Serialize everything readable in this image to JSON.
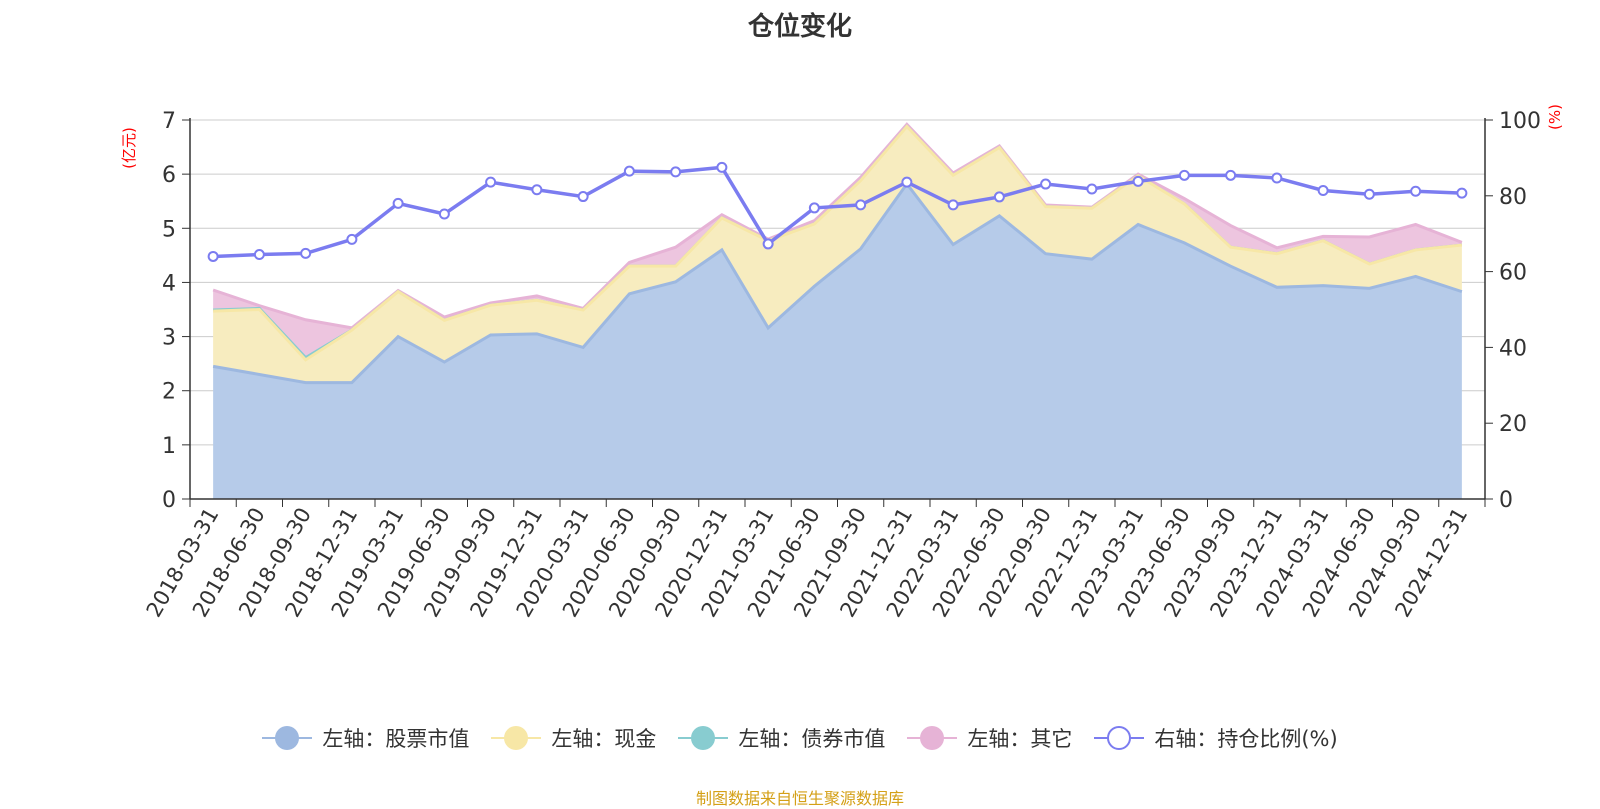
{
  "title": "仓位变化",
  "source_note": "制图数据来自恒生聚源数据库",
  "colors": {
    "stock": "#9db8e0",
    "stock_fill": "#b6cbe9",
    "cash": "#f7e7a6",
    "cash_fill": "#f7ecbf",
    "bond": "#88ccd0",
    "other": "#e6b3d6",
    "other_fill": "#edc5df",
    "ratio": "#7b7cf0",
    "axis_label": "#ff0000",
    "grid": "#cccccc",
    "text": "#333333",
    "source": "#d4a017"
  },
  "legend": [
    {
      "label": "左轴：股票市值",
      "series": "stock",
      "icon": "filled-circle-icon"
    },
    {
      "label": "左轴：现金",
      "series": "cash",
      "icon": "filled-circle-icon"
    },
    {
      "label": "左轴：债券市值",
      "series": "bond",
      "icon": "filled-circle-icon"
    },
    {
      "label": "左轴：其它",
      "series": "other",
      "icon": "filled-circle-icon"
    },
    {
      "label": "右轴：持仓比例(%)",
      "series": "ratio",
      "icon": "hollow-circle-icon"
    }
  ],
  "chart_data": {
    "type": "area",
    "title": "仓位变化",
    "y_left_label": "(亿元)",
    "y_right_label": "(%)",
    "y_left_range": [
      0,
      7
    ],
    "y_left_ticks": [
      "0",
      "1",
      "2",
      "3",
      "4",
      "5",
      "6",
      "7"
    ],
    "y_right_range": [
      0,
      100
    ],
    "y_right_ticks": [
      "0",
      "20",
      "40",
      "60",
      "80",
      "100"
    ],
    "stacked": true,
    "grid": true,
    "legend_position": "bottom",
    "x": [
      "2018-03-31",
      "2018-06-30",
      "2018-09-30",
      "2018-12-31",
      "2019-03-31",
      "2019-06-30",
      "2019-09-30",
      "2019-12-31",
      "2020-03-31",
      "2020-06-30",
      "2020-09-30",
      "2020-12-31",
      "2021-03-31",
      "2021-06-30",
      "2021-09-30",
      "2021-12-31",
      "2022-03-31",
      "2022-06-30",
      "2022-09-30",
      "2022-12-31",
      "2023-03-31",
      "2023-06-30",
      "2023-09-30",
      "2023-12-31",
      "2024-03-31",
      "2024-06-30",
      "2024-09-30",
      "2024-12-31"
    ],
    "series": [
      {
        "name": "左轴：股票市值",
        "axis": "left",
        "values": [
          2.45,
          2.3,
          2.15,
          2.15,
          3.0,
          2.53,
          3.03,
          3.05,
          2.8,
          3.79,
          4.01,
          4.6,
          3.16,
          3.93,
          4.62,
          5.82,
          4.7,
          5.23,
          4.53,
          4.43,
          5.07,
          4.73,
          4.3,
          3.91,
          3.94,
          3.89,
          4.11,
          3.83
        ]
      },
      {
        "name": "左轴：现金",
        "axis": "left",
        "values": [
          1.02,
          1.2,
          0.42,
          0.97,
          0.83,
          0.77,
          0.55,
          0.62,
          0.69,
          0.51,
          0.29,
          0.59,
          1.61,
          1.15,
          1.26,
          1.06,
          1.28,
          1.26,
          0.87,
          0.94,
          0.9,
          0.72,
          0.35,
          0.62,
          0.83,
          0.45,
          0.49,
          0.86
        ]
      },
      {
        "name": "左轴：债券市值",
        "axis": "left",
        "values": [
          0.02,
          0.02,
          0.04,
          0,
          0,
          0,
          0,
          0,
          0,
          0,
          0,
          0,
          0,
          0,
          0,
          0,
          0,
          0,
          0,
          0,
          0,
          0,
          0,
          0,
          0,
          0,
          0,
          0
        ]
      },
      {
        "name": "左轴：其它",
        "axis": "left",
        "values": [
          0.37,
          0.05,
          0.7,
          0.04,
          0.02,
          0.06,
          0.04,
          0.08,
          0.03,
          0.07,
          0.35,
          0.06,
          0.03,
          0.06,
          0.06,
          0.04,
          0.04,
          0.03,
          0.03,
          0.02,
          0.03,
          0.1,
          0.4,
          0.11,
          0.08,
          0.5,
          0.47,
          0.05
        ]
      },
      {
        "name": "右轴：持仓比例(%)",
        "axis": "right",
        "values": [
          64,
          64.5,
          64.8,
          68.5,
          78,
          75.2,
          83.6,
          81.6,
          79.8,
          86.5,
          86.3,
          87.5,
          67.3,
          76.8,
          77.6,
          83.6,
          77.6,
          79.7,
          83.1,
          81.8,
          83.8,
          85.4,
          85.4,
          84.7,
          81.4,
          80.4,
          81.2,
          80.7
        ]
      }
    ]
  }
}
